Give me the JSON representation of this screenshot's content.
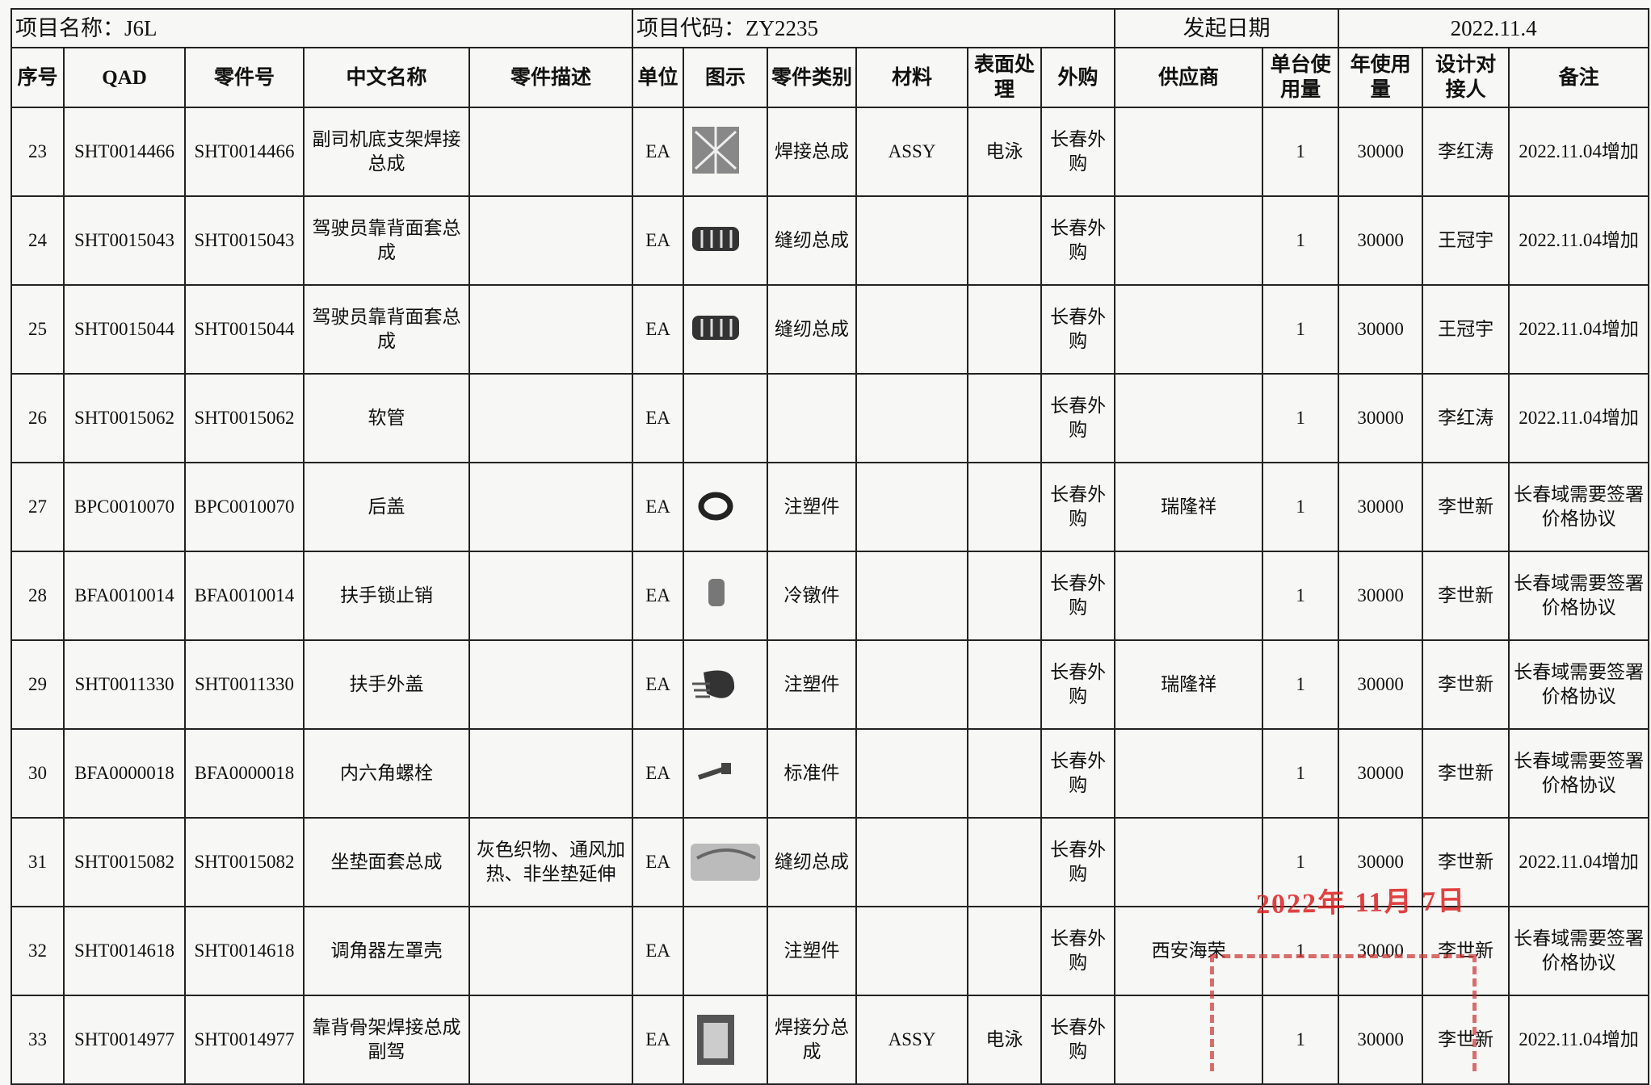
{
  "header": {
    "project_name": "项目名称：J6L",
    "project_code": "项目代码：ZY2235",
    "date_label": "发起日期",
    "date": "2022.11.4"
  },
  "table": {
    "columns": [
      "序号",
      "QAD",
      "零件号",
      "中文名称",
      "零件描述",
      "单位",
      "图示",
      "零件类别",
      "材料",
      "表面处理",
      "外购",
      "供应商",
      "单台使用量",
      "年使用量",
      "设计对接人",
      "备注"
    ],
    "rows": [
      [
        23,
        "SHT0014466",
        "SHT0014466",
        "副司机底支架焊接总成",
        null,
        "EA",
        null,
        "焊接总成",
        "ASSY",
        "电泳",
        "长春外购",
        null,
        1,
        30000,
        "李红涛",
        "2022.11.04增加"
      ],
      [
        24,
        "SHT0015043",
        "SHT0015043",
        "驾驶员靠背面套总成",
        null,
        "EA",
        null,
        "缝纫总成",
        null,
        null,
        "长春外购",
        null,
        1,
        30000,
        "王冠宇",
        "2022.11.04增加"
      ],
      [
        25,
        "SHT0015044",
        "SHT0015044",
        "驾驶员靠背面套总成",
        null,
        "EA",
        null,
        "缝纫总成",
        null,
        null,
        "长春外购",
        null,
        1,
        30000,
        "王冠宇",
        "2022.11.04增加"
      ],
      [
        26,
        "SHT0015062",
        "SHT0015062",
        "软管",
        null,
        "EA",
        null,
        null,
        null,
        null,
        "长春外购",
        null,
        1,
        30000,
        "李红涛",
        "2022.11.04增加"
      ],
      [
        27,
        "BPC0010070",
        "BPC0010070",
        "后盖",
        null,
        "EA",
        null,
        "注塑件",
        null,
        null,
        "长春外购",
        "瑞隆祥",
        1,
        30000,
        "李世新",
        "长春域需要签署价格协议"
      ],
      [
        28,
        "BFA0010014",
        "BFA0010014",
        "扶手锁止销",
        null,
        "EA",
        null,
        "冷镦件",
        null,
        null,
        "长春外购",
        null,
        1,
        30000,
        "李世新",
        "长春域需要签署价格协议"
      ],
      [
        29,
        "SHT0011330",
        "SHT0011330",
        "扶手外盖",
        null,
        "EA",
        null,
        "注塑件",
        null,
        null,
        "长春外购",
        "瑞隆祥",
        1,
        30000,
        "李世新",
        "长春域需要签署价格协议"
      ],
      [
        30,
        "BFA0000018",
        "BFA0000018",
        "内六角螺栓",
        null,
        "EA",
        null,
        "标准件",
        null,
        null,
        "长春外购",
        null,
        1,
        30000,
        "李世新",
        "长春域需要签署价格协议"
      ],
      [
        31,
        "SHT0015082",
        "SHT0015082",
        "坐垫面套总成",
        "灰色织物、通风加热、非坐垫延伸",
        "EA",
        null,
        "缝纫总成",
        null,
        null,
        "长春外购",
        null,
        1,
        30000,
        "李世新",
        "2022.11.04增加"
      ],
      [
        32,
        "SHT0014618",
        "SHT0014618",
        "调角器左罩壳",
        null,
        "EA",
        null,
        "注塑件",
        null,
        null,
        "长春外购",
        "西安海荣",
        1,
        30000,
        "李世新",
        "长春域需要签署价格协议"
      ],
      [
        33,
        "SHT0014977",
        "SHT0014977",
        "靠背骨架焊接总成副驾",
        null,
        "EA",
        null,
        "焊接分总成",
        "ASSY",
        "电泳",
        "长春外购",
        null,
        1,
        30000,
        "李世新",
        "2022.11.04增加"
      ]
    ]
  },
  "stamp": "2022年 11月 7日"
}
